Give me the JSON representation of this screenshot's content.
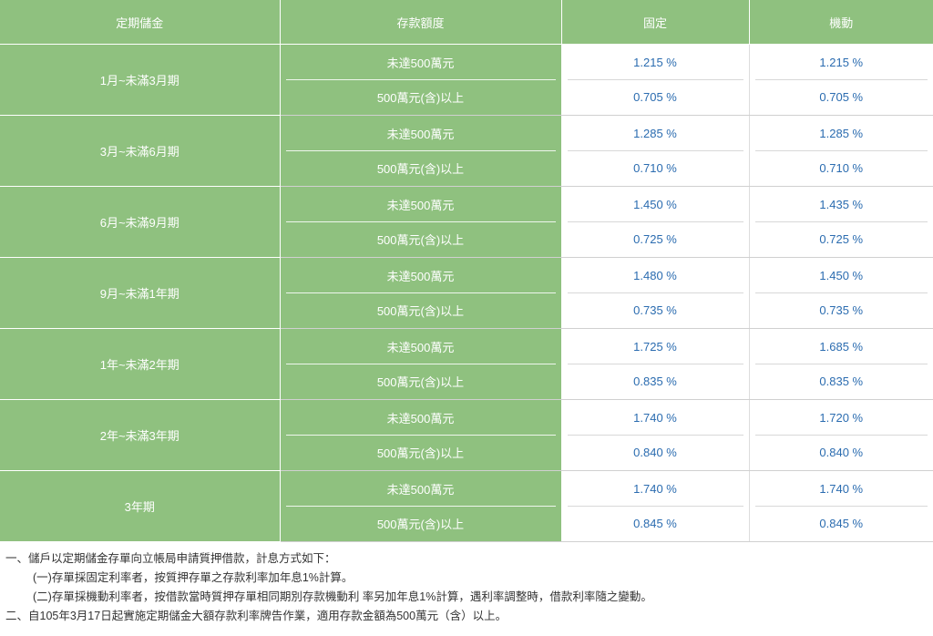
{
  "headers": [
    "定期儲金",
    "存款額度",
    "固定",
    "機動"
  ],
  "amount_labels": {
    "low": "未達500萬元",
    "high": "500萬元(含)以上"
  },
  "rows": [
    {
      "term": "1月~未滿3月期",
      "low_fixed": "1.215 %",
      "low_float": "1.215 %",
      "high_fixed": "0.705 %",
      "high_float": "0.705 %"
    },
    {
      "term": "3月~未滿6月期",
      "low_fixed": "1.285 %",
      "low_float": "1.285 %",
      "high_fixed": "0.710 %",
      "high_float": "0.710 %"
    },
    {
      "term": "6月~未滿9月期",
      "low_fixed": "1.450 %",
      "low_float": "1.435 %",
      "high_fixed": "0.725 %",
      "high_float": "0.725 %"
    },
    {
      "term": "9月~未滿1年期",
      "low_fixed": "1.480 %",
      "low_float": "1.450 %",
      "high_fixed": "0.735 %",
      "high_float": "0.735 %"
    },
    {
      "term": "1年~未滿2年期",
      "low_fixed": "1.725 %",
      "low_float": "1.685 %",
      "high_fixed": "0.835 %",
      "high_float": "0.835 %"
    },
    {
      "term": "2年~未滿3年期",
      "low_fixed": "1.740 %",
      "low_float": "1.720 %",
      "high_fixed": "0.840 %",
      "high_float": "0.840 %"
    },
    {
      "term": "3年期",
      "low_fixed": "1.740 %",
      "low_float": "1.740 %",
      "high_fixed": "0.845 %",
      "high_float": "0.845 %"
    }
  ],
  "notes": [
    "一、儲戶以定期儲金存單向立帳局申請質押借款，計息方式如下：",
    "(一)存單採固定利率者，按質押存單之存款利率加年息1%計算。",
    "(二)存單採機動利率者，按借款當時質押存單相同期別存款機動利 率另加年息1%計算，遇利率調整時，借款利率隨之變動。",
    "二、自105年3月17日起實施定期儲金大額存款利率牌告作業，適用存款金額為500萬元（含）以上。"
  ]
}
